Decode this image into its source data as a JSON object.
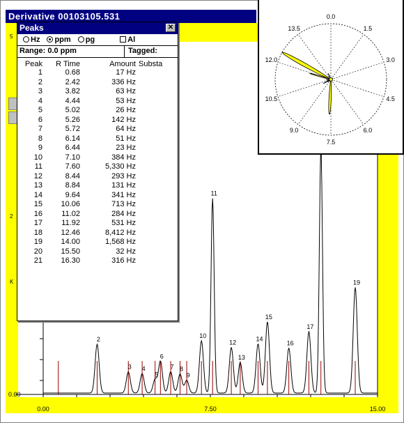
{
  "window": {
    "title": "Derivative   00103105.531"
  },
  "left_labels": {
    "top_mark": "5",
    "mid_mark": "2",
    "k_mark": "K"
  },
  "peaks_dialog": {
    "title": "Peaks",
    "close_glyph": "✕",
    "units": [
      {
        "label": "Hz",
        "selected": false
      },
      {
        "label": "ppm",
        "selected": true
      },
      {
        "label": "pg",
        "selected": false
      }
    ],
    "all_checkbox_label": "Al",
    "range_label": "Range: 0.0 ppm",
    "tagged_label": "Tagged:",
    "columns": [
      "Peak",
      "R Time",
      "Amount",
      "Substa"
    ],
    "rows": [
      {
        "peak": "1",
        "rtime": "0.68",
        "amount": "17 Hz"
      },
      {
        "peak": "2",
        "rtime": "2.42",
        "amount": "336 Hz"
      },
      {
        "peak": "3",
        "rtime": "3.82",
        "amount": "63 Hz"
      },
      {
        "peak": "4",
        "rtime": "4.44",
        "amount": "53 Hz"
      },
      {
        "peak": "5",
        "rtime": "5.02",
        "amount": "26 Hz"
      },
      {
        "peak": "6",
        "rtime": "5.26",
        "amount": "142 Hz"
      },
      {
        "peak": "7",
        "rtime": "5.72",
        "amount": "64 Hz"
      },
      {
        "peak": "8",
        "rtime": "6.14",
        "amount": "51 Hz"
      },
      {
        "peak": "9",
        "rtime": "6.44",
        "amount": "23 Hz"
      },
      {
        "peak": "10",
        "rtime": "7.10",
        "amount": "384 Hz"
      },
      {
        "peak": "11",
        "rtime": "7.60",
        "amount": "5,330 Hz"
      },
      {
        "peak": "12",
        "rtime": "8.44",
        "amount": "293 Hz"
      },
      {
        "peak": "13",
        "rtime": "8.84",
        "amount": "131 Hz"
      },
      {
        "peak": "14",
        "rtime": "9.64",
        "amount": "341 Hz"
      },
      {
        "peak": "15",
        "rtime": "10.06",
        "amount": "713 Hz"
      },
      {
        "peak": "16",
        "rtime": "11.02",
        "amount": "284 Hz"
      },
      {
        "peak": "17",
        "rtime": "11.92",
        "amount": "531 Hz"
      },
      {
        "peak": "18",
        "rtime": "12.46",
        "amount": "8,412 Hz"
      },
      {
        "peak": "19",
        "rtime": "14.00",
        "amount": "1,568 Hz"
      },
      {
        "peak": "20",
        "rtime": "15.50",
        "amount": "32 Hz"
      },
      {
        "peak": "21",
        "rtime": "16.30",
        "amount": "316 Hz"
      }
    ]
  },
  "colors": {
    "titlebar": "#000080",
    "background_yellow": "#ffff00",
    "marker_red": "#990000",
    "trace": "#000000",
    "polar_fill": "#ffff00"
  },
  "chart_data": [
    {
      "type": "line",
      "title": "",
      "xlabel": "",
      "ylabel": "",
      "xlim": [
        0,
        15
      ],
      "x_ticks": [
        "0.00",
        "7.50",
        "15.00"
      ],
      "y_tick_label": "0.00",
      "peaks": [
        {
          "label": "2",
          "x": 2.42,
          "height": 336
        },
        {
          "label": "3",
          "x": 3.82,
          "height": 63
        },
        {
          "label": "4",
          "x": 4.44,
          "height": 53
        },
        {
          "label": "5",
          "x": 5.02,
          "height": 26
        },
        {
          "label": "6",
          "x": 5.26,
          "height": 142
        },
        {
          "label": "7",
          "x": 5.72,
          "height": 64
        },
        {
          "label": "8",
          "x": 6.14,
          "height": 51
        },
        {
          "label": "9",
          "x": 6.44,
          "height": 23
        },
        {
          "label": "10",
          "x": 7.1,
          "height": 384
        },
        {
          "label": "11",
          "x": 7.6,
          "height": 5330
        },
        {
          "label": "12",
          "x": 8.44,
          "height": 293
        },
        {
          "label": "13",
          "x": 8.84,
          "height": 131
        },
        {
          "label": "14",
          "x": 9.64,
          "height": 341
        },
        {
          "label": "15",
          "x": 10.06,
          "height": 713
        },
        {
          "label": "16",
          "x": 11.02,
          "height": 284
        },
        {
          "label": "17",
          "x": 11.92,
          "height": 531
        },
        {
          "label": "18",
          "x": 12.46,
          "height": 8412
        },
        {
          "label": "19",
          "x": 14.0,
          "height": 1568
        }
      ],
      "markers_x": [
        0.68,
        2.42,
        3.82,
        4.44,
        5.02,
        5.26,
        5.72,
        6.14,
        6.44,
        7.1,
        7.6,
        8.44,
        8.84,
        9.64,
        10.06,
        11.02,
        11.92,
        12.46,
        14.0
      ]
    },
    {
      "type": "polar",
      "angular_labels": [
        "0.0",
        "1.5",
        "3.0",
        "4.5",
        "6.0",
        "7.5",
        "9.0",
        "10.5",
        "12.0",
        "13.5"
      ],
      "angular_range": [
        0,
        15
      ],
      "lobes": [
        {
          "angle": 12.46,
          "radius": 1.0
        },
        {
          "angle": 11.92,
          "radius": 0.4
        },
        {
          "angle": 11.02,
          "radius": 0.08
        },
        {
          "angle": 7.6,
          "radius": 0.63
        },
        {
          "angle": 10.06,
          "radius": 0.15
        },
        {
          "angle": 14.0,
          "radius": 0.12
        },
        {
          "angle": 2.42,
          "radius": 0.04
        },
        {
          "angle": 9.64,
          "radius": 0.06
        }
      ]
    }
  ]
}
